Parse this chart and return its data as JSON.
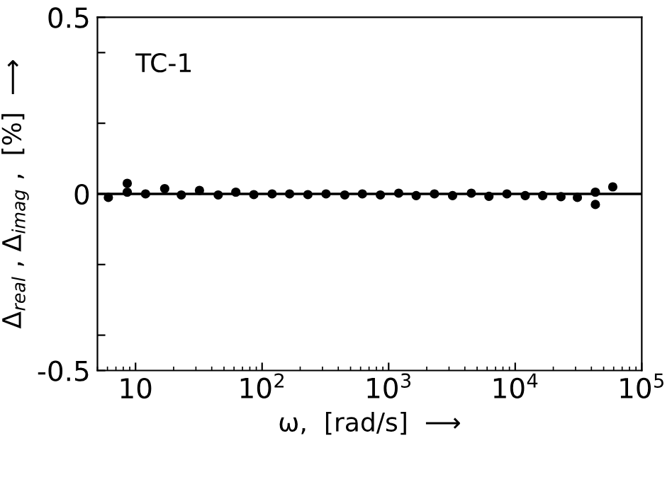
{
  "chart_data": {
    "type": "scatter",
    "x": [
      6.1,
      8.6,
      8.6,
      12,
      17,
      23,
      32,
      45,
      62,
      86,
      120,
      165,
      230,
      320,
      450,
      620,
      860,
      1200,
      1650,
      2300,
      3200,
      4500,
      6200,
      8600,
      12000,
      16500,
      23000,
      31000,
      43000,
      43000,
      59000
    ],
    "values": [
      -0.01,
      0.005,
      0.03,
      0,
      0.015,
      -0.003,
      0.01,
      -0.003,
      0.005,
      -0.002,
      0,
      0,
      -0.002,
      0,
      -0.003,
      0,
      -0.003,
      0.002,
      -0.005,
      0,
      -0.005,
      0.002,
      -0.007,
      0,
      -0.005,
      -0.005,
      -0.008,
      -0.01,
      0.005,
      -0.03,
      0.02
    ],
    "color": "#000000",
    "marker": "circle",
    "xlabel": "ω,  [rad/s]  ⟶",
    "ylabel": "Δ$_{real}$ , Δ$_{imag}$ ,  [%]  ⟶",
    "annotations": [
      "TC-1"
    ],
    "log": "x",
    "xlim": [
      5,
      100000
    ],
    "xticks": [
      10,
      {
        "value": 100,
        "label": "10$^{2}$"
      },
      {
        "value": 1000,
        "label": "10$^{3}$"
      },
      {
        "value": 10000,
        "label": "10$^{4}$"
      },
      {
        "value": 100000,
        "label": "10$^{5}$"
      }
    ],
    "ylim": [
      -0.5,
      0.5
    ],
    "yticks": [
      -0.5,
      {
        "value": -0.4,
        "label": null
      },
      {
        "value": -0.2,
        "label": null
      },
      0,
      {
        "value": 0.2,
        "label": null
      },
      {
        "value": 0.4,
        "label": null
      },
      0.5
    ],
    "ref_lines": [
      {
        "axis": "y",
        "value": 0,
        "color": "#000000",
        "line_style": "solid"
      }
    ],
    "grid": false,
    "legend": false
  }
}
